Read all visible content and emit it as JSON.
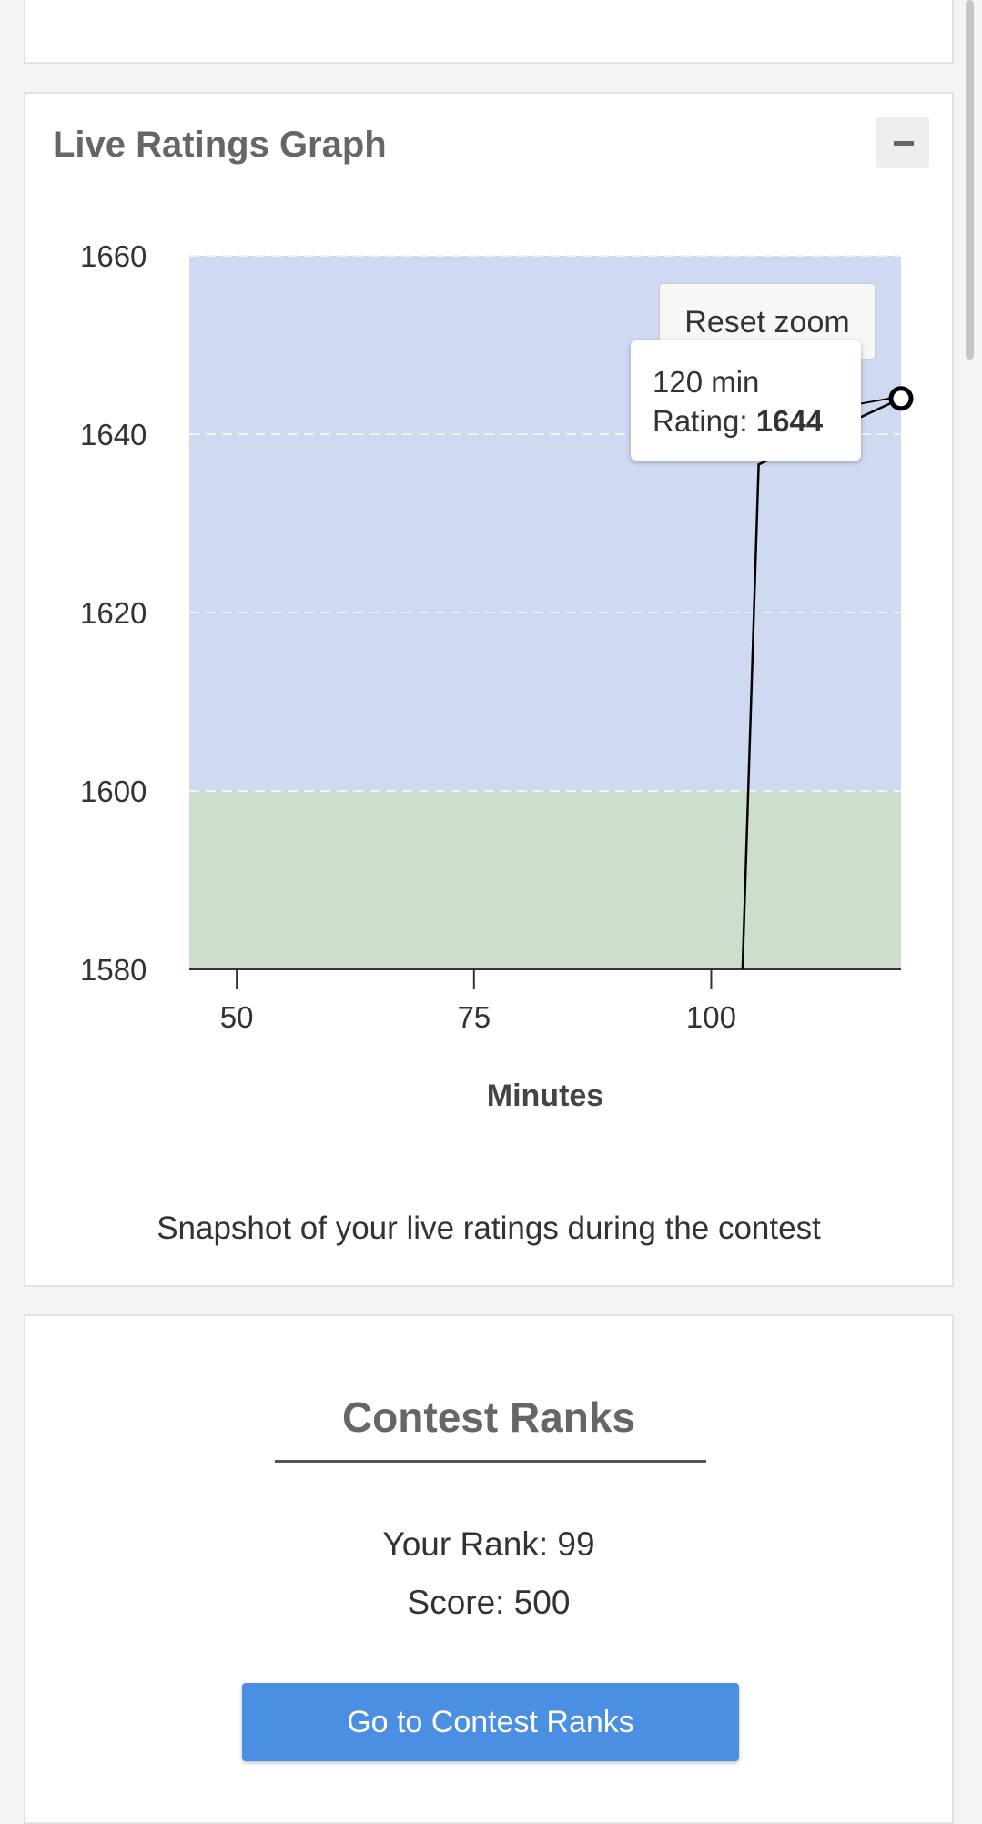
{
  "ratings_panel": {
    "title": "Live Ratings Graph",
    "collapse_icon": "minus-icon",
    "reset_zoom_label": "Reset zoom",
    "tooltip": {
      "x_text": "120 min",
      "rating_label": "Rating: ",
      "rating_value": "1644"
    },
    "caption": "Snapshot of your live ratings during the contest"
  },
  "chart_data": {
    "type": "line",
    "title": "",
    "xlabel": "Minutes",
    "ylabel": "",
    "xlim": [
      45,
      120
    ],
    "ylim": [
      1580,
      1660
    ],
    "xticks": [
      50,
      75,
      100
    ],
    "yticks": [
      1580,
      1600,
      1620,
      1640,
      1660
    ],
    "grid": true,
    "bands": [
      {
        "from": 1580,
        "to": 1600,
        "color": "#cbdfcc"
      },
      {
        "from": 1600,
        "to": 1660,
        "color": "#d0d9f2"
      }
    ],
    "series": [
      {
        "x": [
          103.3,
          105.0,
          120
        ],
        "y": [
          1580,
          1636.6,
          1644
        ],
        "color": "#000000"
      }
    ],
    "highlighted_point": {
      "x": 120,
      "y": 1644
    }
  },
  "ranks_panel": {
    "title": "Contest Ranks",
    "rank_text": "Your Rank: 99",
    "score_text": "Score: 500",
    "button_label": "Go to Contest Ranks",
    "button_color": "#4a8fe2"
  }
}
